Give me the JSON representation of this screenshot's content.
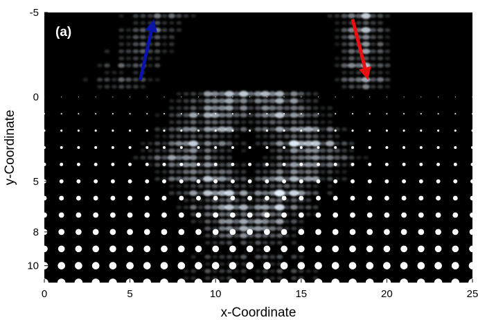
{
  "chart_data": {
    "type": "heatmap",
    "panel_label": "(a)",
    "xlabel": "x-Coordinate",
    "ylabel": "y-Coordinate",
    "xlim": [
      0,
      25
    ],
    "ylim": [
      -5,
      11
    ],
    "y_inverted": true,
    "x_ticks": [
      {
        "value": 0,
        "label": "0"
      },
      {
        "value": 5,
        "label": "5"
      },
      {
        "value": 10,
        "label": "10"
      },
      {
        "value": 15,
        "label": "15"
      },
      {
        "value": 20,
        "label": "20"
      },
      {
        "value": 25,
        "label": "25"
      }
    ],
    "y_ticks": [
      {
        "value": -5,
        "label": "-5"
      },
      {
        "value": 0,
        "label": "0"
      },
      {
        "value": 5,
        "label": "5"
      },
      {
        "value": 8,
        "label": "8"
      },
      {
        "value": 10,
        "label": "10"
      }
    ],
    "arrows": [
      {
        "name": "outgoing",
        "color": "#0a14a8",
        "from": [
          5.6,
          -1.0
        ],
        "to": [
          6.4,
          -4.6
        ]
      },
      {
        "name": "incoming",
        "color": "#e81010",
        "from": [
          18.0,
          -4.6
        ],
        "to": [
          18.9,
          -1.0
        ]
      }
    ],
    "lattice": {
      "y_start": 0,
      "y_end": 11,
      "x_start": 0,
      "x_end": 25,
      "spacing": 1
    },
    "background": "#000000",
    "intensity_color": "#e6f2ff"
  }
}
